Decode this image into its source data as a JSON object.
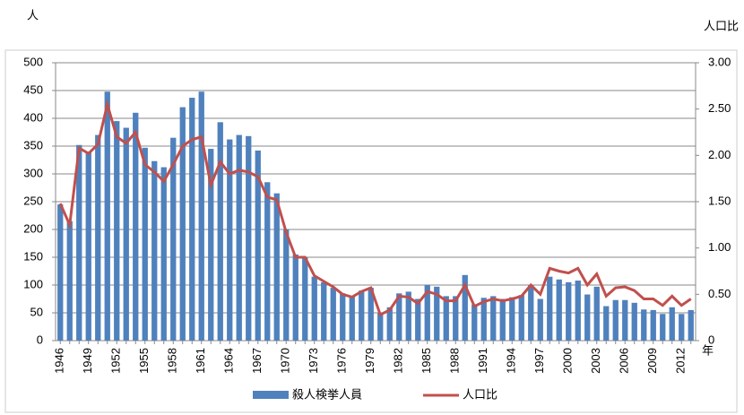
{
  "chart_data": {
    "type": "bar",
    "y_label": "人",
    "y2_label": "人口比",
    "x_label": "年",
    "categories": [
      "1946",
      null,
      null,
      "1949",
      null,
      null,
      "1952",
      null,
      null,
      "1955",
      null,
      null,
      "1958",
      null,
      null,
      "1961",
      null,
      null,
      "1964",
      null,
      null,
      "1967",
      null,
      null,
      "1970",
      null,
      null,
      "1973",
      null,
      null,
      "1976",
      null,
      null,
      "1979",
      null,
      null,
      "1982",
      null,
      null,
      "1985",
      null,
      null,
      "1988",
      null,
      null,
      "1991",
      null,
      null,
      "1994",
      null,
      null,
      "1997",
      null,
      null,
      "2000",
      null,
      null,
      "2003",
      null,
      null,
      "2006",
      null,
      null,
      "2009",
      null,
      null,
      "2012",
      null
    ],
    "series": [
      {
        "name": "殺人検挙人員",
        "type": "bar",
        "color": "#4f81bd",
        "values": [
          245,
          215,
          352,
          340,
          370,
          448,
          395,
          383,
          410,
          347,
          323,
          312,
          365,
          420,
          437,
          448,
          345,
          393,
          362,
          370,
          368,
          342,
          285,
          265,
          200,
          155,
          150,
          115,
          105,
          95,
          85,
          80,
          90,
          95,
          50,
          60,
          85,
          88,
          75,
          100,
          97,
          80,
          80,
          118,
          65,
          77,
          80,
          75,
          78,
          82,
          100,
          75,
          115,
          110,
          105,
          108,
          83,
          97,
          62,
          73,
          73,
          68,
          56,
          55,
          48,
          60,
          48,
          55
        ]
      },
      {
        "name": "人口比",
        "type": "line",
        "axis": "y2",
        "color": "#c0504d",
        "values": [
          1.48,
          1.25,
          2.08,
          2.02,
          2.12,
          2.55,
          2.2,
          2.13,
          2.25,
          1.9,
          1.82,
          1.72,
          1.9,
          2.1,
          2.17,
          2.2,
          1.68,
          1.93,
          1.8,
          1.84,
          1.82,
          1.77,
          1.55,
          1.52,
          1.17,
          0.9,
          0.9,
          0.7,
          0.64,
          0.58,
          0.5,
          0.47,
          0.53,
          0.57,
          0.28,
          0.33,
          0.48,
          0.47,
          0.4,
          0.53,
          0.5,
          0.43,
          0.43,
          0.6,
          0.37,
          0.42,
          0.45,
          0.43,
          0.45,
          0.48,
          0.6,
          0.5,
          0.78,
          0.75,
          0.73,
          0.78,
          0.6,
          0.72,
          0.48,
          0.57,
          0.58,
          0.54,
          0.45,
          0.45,
          0.38,
          0.48,
          0.38,
          0.45
        ]
      }
    ],
    "ylim": [
      0,
      500
    ],
    "yticks": [
      0,
      50,
      100,
      150,
      200,
      250,
      300,
      350,
      400,
      450,
      500
    ],
    "y2lim": [
      0,
      3
    ],
    "y2ticks": [
      0,
      {
        "value": 0.5,
        "label": "0.50"
      },
      {
        "value": 1,
        "label": "1.00"
      },
      {
        "value": 1.5,
        "label": "1.50"
      },
      {
        "value": 2,
        "label": "2.00"
      },
      {
        "value": 2.5,
        "label": "2.50"
      },
      {
        "value": 3,
        "label": "3.00"
      }
    ],
    "grid": true,
    "legend": "bottom"
  }
}
